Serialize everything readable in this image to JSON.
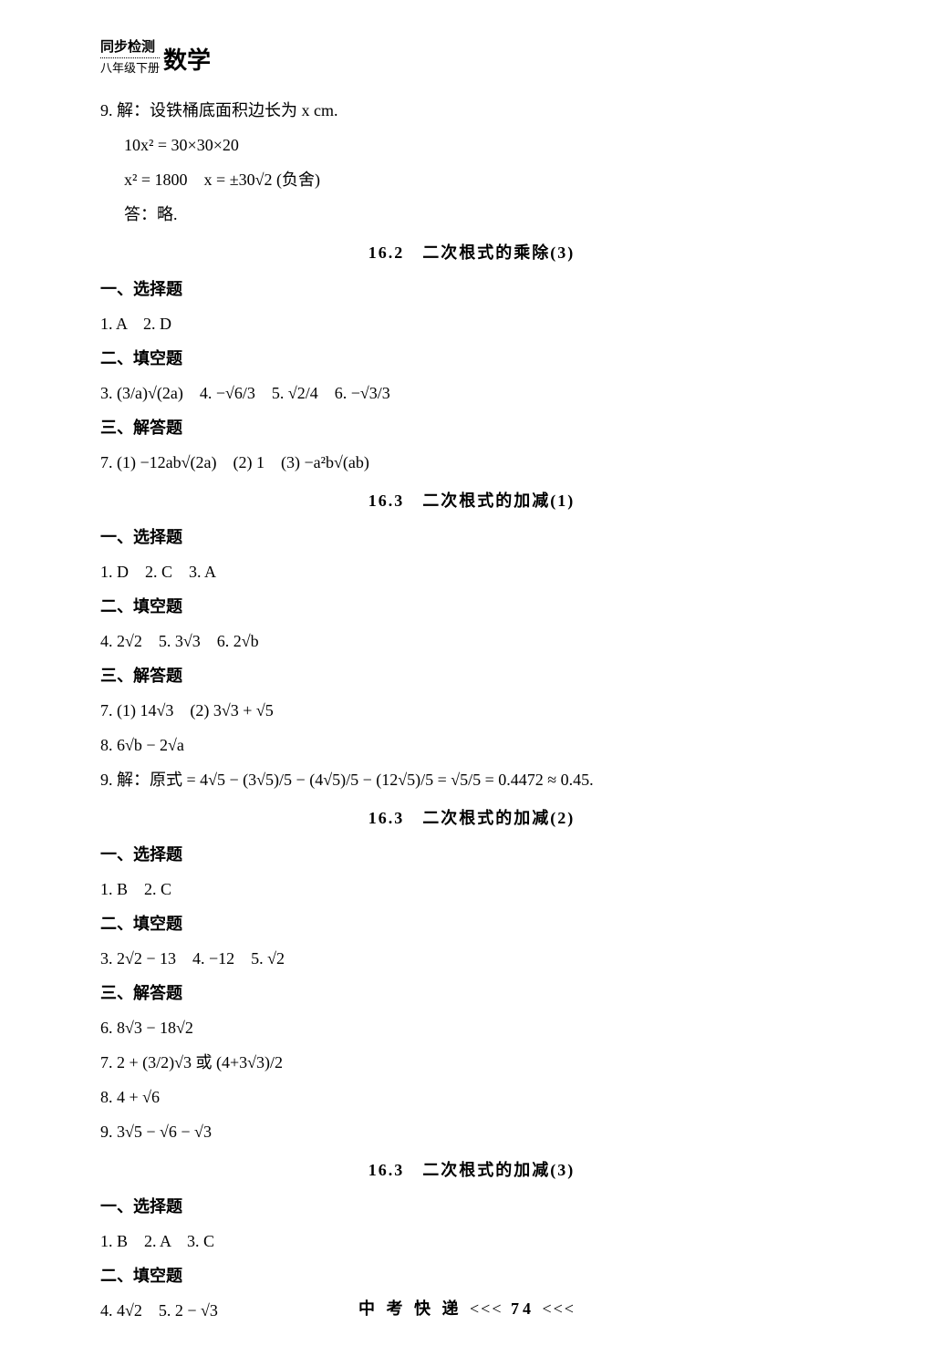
{
  "header": {
    "top": "同步检测",
    "sub": "八年级下册",
    "subject": "数学"
  },
  "p9": {
    "l1": "9. 解：设铁桶底面积边长为 x cm.",
    "l2": "10x² = 30×30×20",
    "l3": "x² = 1800　x = ±30√2 (负舍)",
    "l4": "答：略."
  },
  "sec1": {
    "title": "16.2　二次根式的乘除(3)",
    "h1": "一、选择题",
    "a1": "1. A　2. D",
    "h2": "二、填空题",
    "a2": "3. (3/a)√(2a)　4. −√6/3　5. √2/4　6. −√3/3",
    "h3": "三、解答题",
    "a3": "7. (1) −12ab√(2a)　(2) 1　(3) −a²b√(ab)"
  },
  "sec2": {
    "title": "16.3　二次根式的加减(1)",
    "h1": "一、选择题",
    "a1": "1. D　2. C　3. A",
    "h2": "二、填空题",
    "a2": "4. 2√2　5. 3√3　6. 2√b",
    "h3": "三、解答题",
    "a3": "7. (1) 14√3　(2) 3√3 + √5",
    "a4": "8. 6√b − 2√a",
    "a5": "9. 解：原式 = 4√5 − (3√5)/5 − (4√5)/5 − (12√5)/5 = √5/5 = 0.4472 ≈ 0.45."
  },
  "sec3": {
    "title": "16.3　二次根式的加减(2)",
    "h1": "一、选择题",
    "a1": "1. B　2. C",
    "h2": "二、填空题",
    "a2": "3. 2√2 − 13　4. −12　5. √2",
    "h3": "三、解答题",
    "a3": "6. 8√3 − 18√2",
    "a4": "7. 2 + (3/2)√3 或 (4+3√3)/2",
    "a5": "8. 4 + √6",
    "a6": "9. 3√5 − √6 − √3"
  },
  "sec4": {
    "title": "16.3　二次根式的加减(3)",
    "h1": "一、选择题",
    "a1": "1. B　2. A　3. C",
    "h2": "二、填空题",
    "a2": "4. 4√2　5. 2 − √3"
  },
  "footer": {
    "label": "中 考 快 递",
    "left": "<<<",
    "page": "74",
    "right": "<<<"
  }
}
